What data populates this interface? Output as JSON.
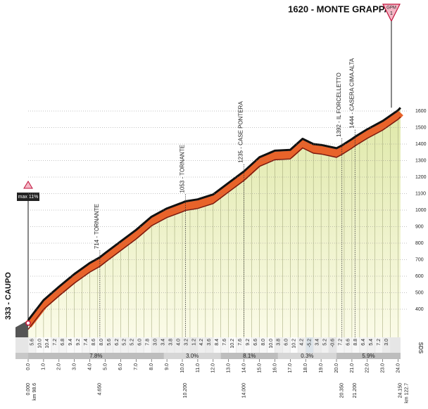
{
  "chart_data": {
    "type": "area",
    "title": "1620 - MONTE GRAPPA",
    "badge": "GPM",
    "badge_number": "1",
    "start_label": "333 - CAUPO",
    "max_label": "max 11%",
    "watermark": "SDS",
    "x": [
      0,
      1,
      2,
      3,
      4,
      4.65,
      5,
      6,
      7,
      8,
      9,
      10,
      10.2,
      11,
      12,
      13,
      14,
      15,
      16,
      17,
      17.8,
      18.5,
      19,
      20,
      20.35,
      21,
      21.2,
      22,
      23,
      24,
      24.15
    ],
    "values": [
      333,
      455,
      536,
      613,
      680,
      714,
      740,
      810,
      880,
      960,
      1010,
      1045,
      1053,
      1065,
      1095,
      1165,
      1235,
      1320,
      1360,
      1365,
      1432,
      1400,
      1395,
      1375,
      1392,
      1430,
      1444,
      1490,
      1540,
      1605,
      1620
    ],
    "xlim": [
      0,
      24.15
    ],
    "ylim": [
      250,
      1650
    ],
    "yticks": [
      400,
      500,
      600,
      700,
      800,
      900,
      1000,
      1100,
      1200,
      1300,
      1400,
      1500,
      1600
    ],
    "xticks": [
      {
        "value": 0,
        "label": "0.0"
      },
      {
        "value": 1,
        "label": "1.0"
      },
      {
        "value": 2,
        "label": "2.0"
      },
      {
        "value": 3,
        "label": "3.0"
      },
      {
        "value": 4,
        "label": "4.0"
      },
      {
        "value": 5,
        "label": "5.0"
      },
      {
        "value": 6,
        "label": "6.0"
      },
      {
        "value": 7,
        "label": "7.0"
      },
      {
        "value": 8,
        "label": "8.0"
      },
      {
        "value": 9,
        "label": "9.0"
      },
      {
        "value": 10,
        "label": "10.0"
      },
      {
        "value": 11,
        "label": "11.0"
      },
      {
        "value": 12,
        "label": "12.0"
      },
      {
        "value": 13,
        "label": "13.0"
      },
      {
        "value": 14,
        "label": "14.0"
      },
      {
        "value": 15,
        "label": "15.0"
      },
      {
        "value": 16,
        "label": "16.0"
      },
      {
        "value": 17,
        "label": "17.0"
      },
      {
        "value": 18,
        "label": "18.0"
      },
      {
        "value": 19,
        "label": "19.0"
      },
      {
        "value": 20,
        "label": "20.0"
      },
      {
        "value": 21,
        "label": "21.0"
      },
      {
        "value": 22,
        "label": "22.0"
      },
      {
        "value": 23,
        "label": "23.0"
      },
      {
        "value": 24,
        "label": "24.0"
      }
    ],
    "waypoints": [
      {
        "label": "714 - TORNANTE",
        "km": 4.65,
        "km_label": "4.650"
      },
      {
        "label": "1053 - TORNANTE",
        "km": 10.2,
        "km_label": "10.200"
      },
      {
        "label": "1235 - CASE PONTERA",
        "km": 14,
        "km_label": "14.000"
      },
      {
        "label": "1392 - IL FORCELLETTO",
        "km": 20.35,
        "km_label": "20.350"
      },
      {
        "label": "1444 - CASERA CIMA ALTA",
        "km": 21.2,
        "km_label": "21.200"
      }
    ],
    "start": {
      "km": 0,
      "km_label": "0.000",
      "race_km": "km 98.6"
    },
    "end": {
      "km": 24.15,
      "km_label": "24.150",
      "race_km": "km 122.7"
    },
    "grade_sections": [
      {
        "from": 0,
        "to": 8.8,
        "value": 7.8,
        "label": "7.8%"
      },
      {
        "from": 8.8,
        "to": 12.5,
        "value": 3.0,
        "label": "3.0%"
      },
      {
        "from": 12.5,
        "to": 16.2,
        "value": 8.1,
        "label": "8.1%"
      },
      {
        "from": 16.2,
        "to": 20,
        "value": 0.3,
        "label": "0.3%"
      },
      {
        "from": 20,
        "to": 24.15,
        "value": 5.9,
        "label": "5.9%"
      }
    ],
    "half_km_grades": {
      "values": [
        5.6,
        10.0,
        10.4,
        7.2,
        6.8,
        9.4,
        9.2,
        7.4,
        8.6,
        8.0,
        5.6,
        6.2,
        5.2,
        5.2,
        6.0,
        7.8,
        3.0,
        3.4,
        3.8,
        4.0,
        3.2,
        1.2,
        4.2,
        3.6,
        8.4,
        7.6,
        10.2,
        7.6,
        9.2,
        6.6,
        8.0,
        10.0,
        3.8,
        6.0,
        10.2,
        4.2,
        -5.2,
        3.4,
        5.2,
        -0.6,
        7.2,
        6.6,
        8.8,
        6.4,
        5.4,
        7.2,
        3.0
      ],
      "value_labels": [
        "5.6",
        "10.0",
        "10.4",
        "7.2",
        "6.8",
        "9.4",
        "9.2",
        "7.4",
        "8.6",
        "8.0",
        "5.6",
        "6.2",
        "5.2",
        "5.2",
        "6.0",
        "7.8",
        "3.0",
        "3.4",
        "3.8",
        "4.0",
        "3.2",
        "1.2",
        "4.2",
        "3.6",
        "8.4",
        "7.6",
        "10.2",
        "7.6",
        "9.2",
        "6.6",
        "8.0",
        "10.0",
        "3.8",
        "6.0",
        "10.2",
        "4.2",
        "-5.2",
        "3.4",
        "5.2",
        "-0.6",
        "7.2",
        "6.6",
        "8.8",
        "6.4",
        "5.4",
        "7.2",
        "3.0"
      ]
    }
  }
}
